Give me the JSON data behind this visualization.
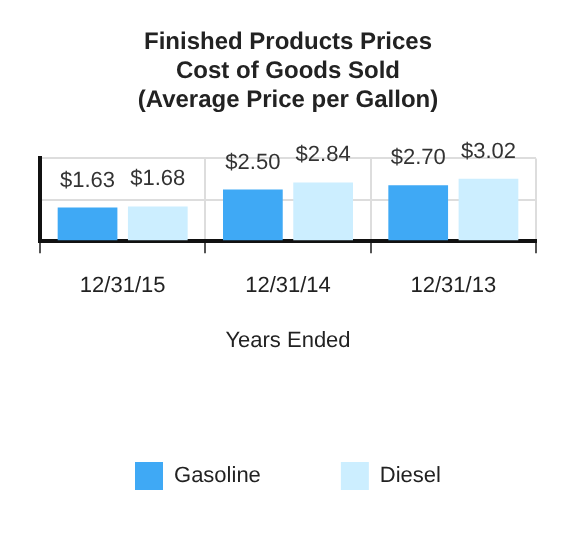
{
  "chart_data": {
    "type": "bar",
    "title": [
      "Finished Products Prices",
      "Cost of Goods Sold",
      "(Average Price per Gallon)"
    ],
    "xlabel": "Years Ended",
    "categories": [
      "12/31/15",
      "12/31/14",
      "12/31/13"
    ],
    "series": [
      {
        "name": "Gasoline",
        "color": "#3fa9f5",
        "values": [
          1.63,
          2.5,
          2.7
        ],
        "value_labels": [
          "$1.63",
          "$2.50",
          "$2.70"
        ]
      },
      {
        "name": "Diesel",
        "color": "#cceeff",
        "values": [
          1.68,
          2.84,
          3.02
        ],
        "value_labels": [
          "$1.68",
          "$2.84",
          "$3.02"
        ]
      }
    ],
    "tick_labels": "x",
    "grid": true,
    "legend": "bottom"
  }
}
